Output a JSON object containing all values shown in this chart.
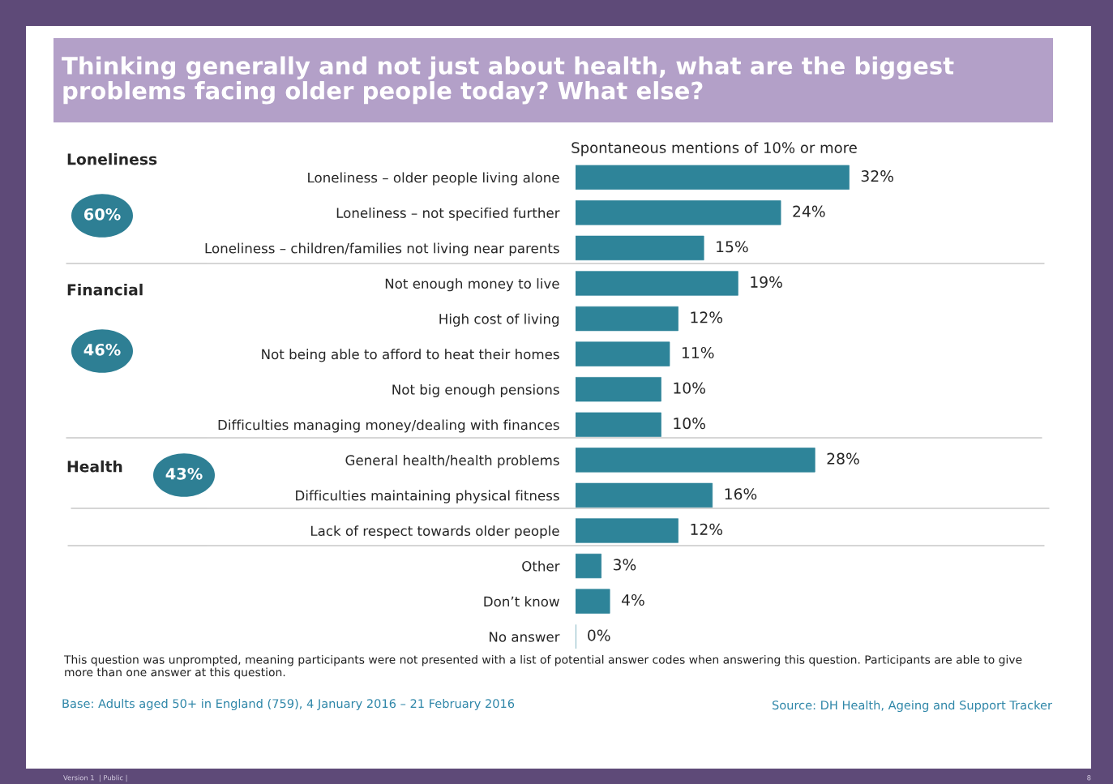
{
  "chart_data": {
    "type": "bar",
    "orientation": "horizontal",
    "title": "Thinking generally and not just about health, what are the biggest problems facing older people today? What else?",
    "subtitle": "Spontaneous mentions of 10% or more",
    "categories": [
      "Loneliness – older people living alone",
      "Loneliness – not specified further",
      "Loneliness – children/families not living near parents",
      "Not enough money to live",
      "High cost of living",
      "Not being able to afford to heat their homes",
      "Not big enough pensions",
      "Difficulties managing money/dealing with finances",
      "General health/health problems",
      "Difficulties maintaining physical fitness",
      "Lack of respect towards older people",
      "Other",
      "Don’t know",
      "No answer"
    ],
    "values": [
      32,
      24,
      15,
      19,
      12,
      11,
      10,
      10,
      28,
      16,
      12,
      3,
      4,
      0
    ],
    "color": "#2e8499",
    "xlim": [
      0,
      55
    ],
    "tick_labels": "y",
    "data_labels": true,
    "value_labels": [
      "32%",
      "24%",
      "15%",
      "19%",
      "12%",
      "11%",
      "10%",
      "10%",
      "28%",
      "16%",
      "12%",
      "3%",
      "4%",
      "0%"
    ],
    "annotations": [
      "Loneliness",
      "60%",
      "Financial",
      "46%",
      "Health",
      "43%",
      "This question was unprompted, meaning participants were not presented with a list of potential answer codes when answering this question. Participants are able to give more than one answer at this question.",
      "Base: Adults aged 50+ in England (759), 4 January 2016 – 21 February 2016",
      "Source: DH Health, Ageing and Support Tracker",
      "Version 1  | Public |",
      "8"
    ]
  }
}
